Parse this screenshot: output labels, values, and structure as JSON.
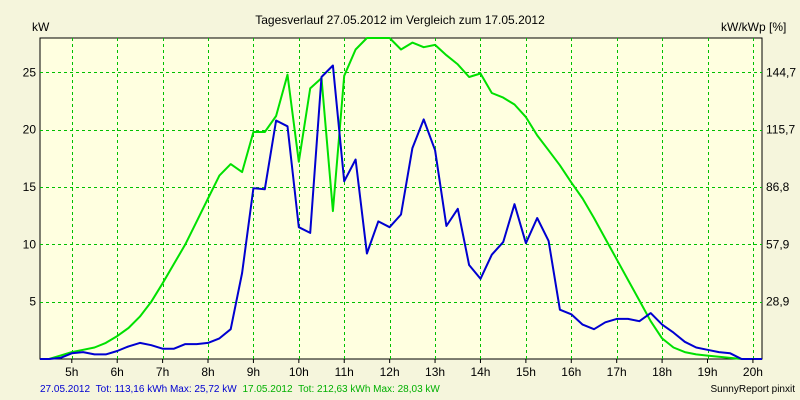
{
  "chart_data": {
    "type": "line",
    "title": "Tagesverlauf 27.05.2012 im Vergleich zum 17.05.2012",
    "ylabel_left": "kW",
    "ylabel_right": "kW/kWp [%]",
    "xlim": [
      4.3,
      20.2
    ],
    "ylim": [
      0,
      28
    ],
    "x_ticks": [
      {
        "value": 5,
        "label": "5h"
      },
      {
        "value": 6,
        "label": "6h"
      },
      {
        "value": 7,
        "label": "7h"
      },
      {
        "value": 8,
        "label": "8h"
      },
      {
        "value": 9,
        "label": "9h"
      },
      {
        "value": 10,
        "label": "10h"
      },
      {
        "value": 11,
        "label": "11h"
      },
      {
        "value": 12,
        "label": "12h"
      },
      {
        "value": 13,
        "label": "13h"
      },
      {
        "value": 14,
        "label": "14h"
      },
      {
        "value": 15,
        "label": "15h"
      },
      {
        "value": 16,
        "label": "16h"
      },
      {
        "value": 17,
        "label": "17h"
      },
      {
        "value": 18,
        "label": "18h"
      },
      {
        "value": 19,
        "label": "19h"
      },
      {
        "value": 20,
        "label": "20h"
      }
    ],
    "y_ticks_left": [
      {
        "value": 5,
        "label": "5"
      },
      {
        "value": 10,
        "label": "10"
      },
      {
        "value": 15,
        "label": "15"
      },
      {
        "value": 20,
        "label": "20"
      },
      {
        "value": 25,
        "label": "25"
      }
    ],
    "y_ticks_right": [
      {
        "value": 5,
        "label": "28,9"
      },
      {
        "value": 10,
        "label": "57,9"
      },
      {
        "value": 15,
        "label": "86,8"
      },
      {
        "value": 20,
        "label": "115,7"
      },
      {
        "value": 25,
        "label": "144,7"
      }
    ],
    "grid": true,
    "series": [
      {
        "name": "17.05.2012",
        "color": "#00e000",
        "x": [
          4.3,
          4.5,
          4.75,
          5.0,
          5.25,
          5.5,
          5.75,
          6.0,
          6.25,
          6.5,
          6.75,
          7.0,
          7.25,
          7.5,
          7.75,
          8.0,
          8.25,
          8.5,
          8.75,
          9.0,
          9.25,
          9.5,
          9.75,
          10.0,
          10.25,
          10.5,
          10.75,
          11.0,
          11.25,
          11.5,
          11.75,
          12.0,
          12.25,
          12.5,
          12.75,
          13.0,
          13.25,
          13.5,
          13.75,
          14.0,
          14.25,
          14.5,
          14.75,
          15.0,
          15.25,
          15.5,
          15.75,
          16.0,
          16.25,
          16.5,
          16.75,
          17.0,
          17.25,
          17.5,
          17.75,
          18.0,
          18.25,
          18.5,
          18.75,
          19.0,
          19.25,
          19.5,
          19.75,
          20.0,
          20.2
        ],
        "y": [
          0.0,
          0.0,
          0.3,
          0.6,
          0.8,
          1.0,
          1.4,
          2.0,
          2.7,
          3.7,
          5.0,
          6.6,
          8.3,
          10.0,
          12.0,
          14.0,
          16.0,
          17.0,
          16.3,
          19.8,
          19.8,
          21.2,
          24.8,
          17.2,
          23.6,
          24.5,
          12.9,
          24.7,
          27.0,
          28.0,
          28.0,
          28.0,
          27.0,
          27.6,
          27.2,
          27.4,
          26.5,
          25.7,
          24.6,
          24.9,
          23.2,
          22.8,
          22.2,
          21.1,
          19.5,
          18.2,
          16.9,
          15.4,
          14.0,
          12.3,
          10.5,
          8.7,
          6.9,
          5.1,
          3.3,
          1.8,
          1.0,
          0.6,
          0.4,
          0.3,
          0.2,
          0.1,
          0.0,
          0.0,
          0.0
        ]
      },
      {
        "name": "27.05.2012",
        "color": "#0000d0",
        "x": [
          4.3,
          4.5,
          4.75,
          5.0,
          5.25,
          5.5,
          5.75,
          6.0,
          6.25,
          6.5,
          6.75,
          7.0,
          7.25,
          7.5,
          7.75,
          8.0,
          8.25,
          8.5,
          8.75,
          9.0,
          9.25,
          9.5,
          9.75,
          10.0,
          10.25,
          10.5,
          10.75,
          11.0,
          11.25,
          11.5,
          11.75,
          12.0,
          12.25,
          12.5,
          12.75,
          13.0,
          13.25,
          13.5,
          13.75,
          14.0,
          14.25,
          14.5,
          14.75,
          15.0,
          15.25,
          15.5,
          15.75,
          16.0,
          16.25,
          16.5,
          16.75,
          17.0,
          17.25,
          17.5,
          17.75,
          18.0,
          18.25,
          18.5,
          18.75,
          19.0,
          19.25,
          19.5,
          19.75,
          20.0,
          20.2
        ],
        "y": [
          0.0,
          0.0,
          0.1,
          0.5,
          0.6,
          0.4,
          0.4,
          0.7,
          1.1,
          1.4,
          1.2,
          0.9,
          0.9,
          1.3,
          1.3,
          1.4,
          1.8,
          2.6,
          7.5,
          14.9,
          14.8,
          20.8,
          20.3,
          11.5,
          11.0,
          24.6,
          25.6,
          15.5,
          17.4,
          9.2,
          12.0,
          11.5,
          12.6,
          18.4,
          20.9,
          18.2,
          11.6,
          13.1,
          8.2,
          7.0,
          9.1,
          10.2,
          13.5,
          10.1,
          12.3,
          10.3,
          4.3,
          3.9,
          3.0,
          2.6,
          3.2,
          3.5,
          3.5,
          3.3,
          4.0,
          3.0,
          2.3,
          1.5,
          1.0,
          0.8,
          0.6,
          0.5,
          0.0,
          0.0,
          0.0
        ]
      }
    ],
    "footer": {
      "date1": "27.05.2012",
      "date1_stats": "Tot: 113,16 kWh Max: 25,72 kW",
      "date2": "17.05.2012",
      "date2_stats": "Tot: 212,63 kWh Max: 28,03 kW",
      "credit": "SunnyReport pinxit"
    }
  }
}
